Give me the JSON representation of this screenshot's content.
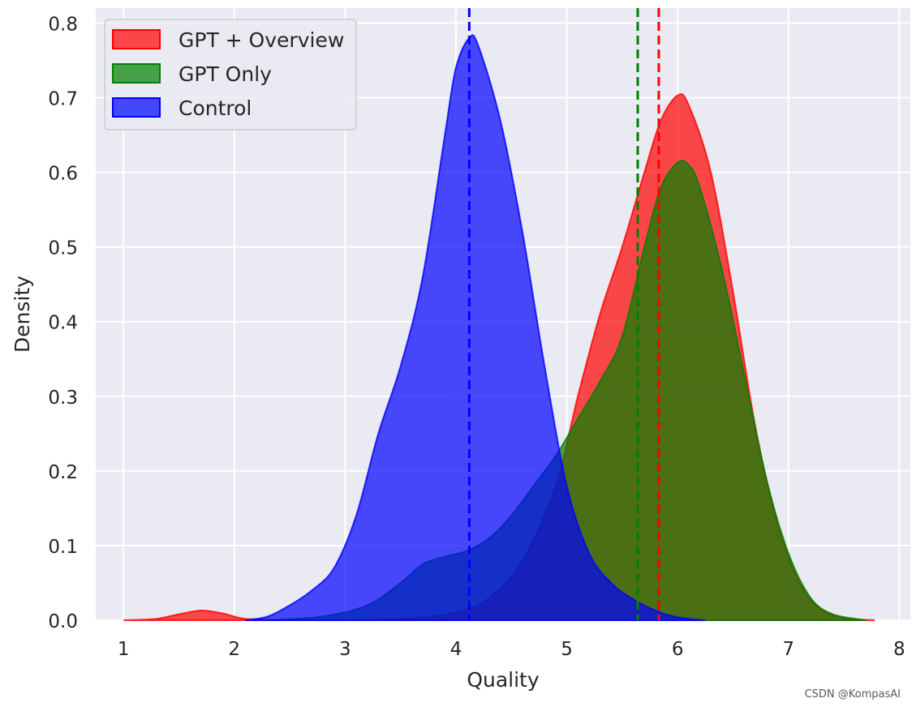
{
  "chart_data": {
    "type": "area",
    "style": "seaborn-darkgrid",
    "background": "#eaeaf2",
    "grid": true,
    "xlabel": "Quality",
    "ylabel": "Density",
    "xlim": [
      0.75,
      8.1
    ],
    "ylim": [
      0,
      0.82
    ],
    "xticks": [
      1,
      2,
      3,
      4,
      5,
      6,
      7,
      8
    ],
    "yticks": [
      "0.0",
      "0.1",
      "0.2",
      "0.3",
      "0.4",
      "0.5",
      "0.6",
      "0.7",
      "0.8"
    ],
    "legend_position": "top-left",
    "series": [
      {
        "name": "GPT + Overview",
        "color": "#ff0000",
        "mean_line": 5.83,
        "x": [
          1.0,
          1.3,
          1.5,
          1.7,
          1.9,
          2.1,
          2.5,
          3.0,
          3.5,
          4.0,
          4.3,
          4.6,
          4.9,
          5.1,
          5.3,
          5.5,
          5.7,
          5.85,
          6.0,
          6.1,
          6.3,
          6.5,
          6.7,
          6.9,
          7.1,
          7.3,
          7.5,
          7.78
        ],
        "y": [
          0.0,
          0.002,
          0.008,
          0.013,
          0.009,
          0.002,
          0.0,
          0.0,
          0.002,
          0.01,
          0.03,
          0.08,
          0.18,
          0.3,
          0.41,
          0.5,
          0.6,
          0.67,
          0.703,
          0.69,
          0.6,
          0.44,
          0.26,
          0.13,
          0.05,
          0.015,
          0.003,
          0.0
        ]
      },
      {
        "name": "GPT Only",
        "color": "#008000",
        "mean_line": 5.64,
        "x": [
          2.3,
          2.8,
          3.2,
          3.5,
          3.7,
          3.9,
          4.1,
          4.3,
          4.5,
          4.7,
          4.9,
          5.1,
          5.3,
          5.5,
          5.7,
          5.85,
          6.0,
          6.1,
          6.2,
          6.4,
          6.6,
          6.8,
          7.0,
          7.2,
          7.4,
          7.7
        ],
        "y": [
          0.0,
          0.005,
          0.02,
          0.05,
          0.075,
          0.085,
          0.093,
          0.11,
          0.14,
          0.18,
          0.22,
          0.27,
          0.32,
          0.38,
          0.5,
          0.58,
          0.613,
          0.61,
          0.58,
          0.47,
          0.33,
          0.19,
          0.09,
          0.03,
          0.008,
          0.0
        ]
      },
      {
        "name": "Control",
        "color": "#0000ff",
        "mean_line": 4.12,
        "x": [
          2.1,
          2.3,
          2.5,
          2.7,
          2.9,
          3.1,
          3.3,
          3.5,
          3.7,
          3.9,
          4.0,
          4.12,
          4.2,
          4.4,
          4.6,
          4.8,
          5.0,
          5.2,
          5.4,
          5.6,
          5.8,
          6.0,
          6.25
        ],
        "y": [
          0.0,
          0.005,
          0.02,
          0.04,
          0.07,
          0.14,
          0.25,
          0.34,
          0.46,
          0.65,
          0.74,
          0.78,
          0.77,
          0.67,
          0.52,
          0.34,
          0.18,
          0.09,
          0.05,
          0.028,
          0.013,
          0.004,
          0.0
        ]
      }
    ]
  },
  "watermark": "CSDN @KompasAI"
}
